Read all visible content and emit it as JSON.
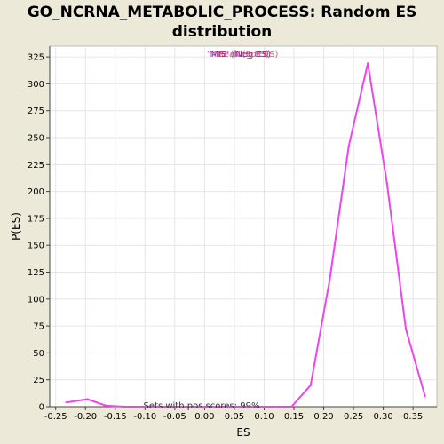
{
  "title_line1": "GO_NCRNA_METABOLIC_PROCESS: Random ES",
  "title_line2": "distribution",
  "legend": {
    "label_a": "'MIS' (Neg ES)",
    "label_a_color": "#b0007a",
    "label_b": "'Real' (Pos ES)",
    "label_b_color": "#e0405a",
    "label_c": "'MIS' (Neg ES)",
    "label_c_color": "#7a3ab0"
  },
  "annotation": "Sets with pos scores: 99%",
  "colors": {
    "line": "#ee44ee",
    "background": "#ece9d8",
    "plot_bg": "#ffffff",
    "grid": "#e6e6e6"
  },
  "chart_data": {
    "type": "line",
    "title": "GO_NCRNA_METABOLIC_PROCESS: Random ES distribution",
    "xlabel": "ES",
    "ylabel": "P(ES)",
    "xlim": [
      -0.26,
      0.39
    ],
    "ylim": [
      0,
      335
    ],
    "grid": true,
    "xticks": [
      -0.25,
      -0.2,
      -0.15,
      -0.1,
      -0.05,
      0.0,
      0.05,
      0.1,
      0.15,
      0.2,
      0.25,
      0.3,
      0.35
    ],
    "xtick_labels": [
      "-0.25",
      "-0.20",
      "-0.15",
      "-0.10",
      "-0.05",
      "0.00",
      "0.05",
      "0.10",
      "0.15",
      "0.20",
      "0.25",
      "0.30",
      "0.35"
    ],
    "yticks": [
      0,
      25,
      50,
      75,
      100,
      125,
      150,
      175,
      200,
      225,
      250,
      275,
      300,
      325
    ],
    "ytick_labels": [
      "0",
      "25",
      "50",
      "75",
      "100",
      "125",
      "150",
      "175",
      "200",
      "225",
      "250",
      "275",
      "300",
      "325"
    ],
    "series": [
      {
        "x": [
          -0.232,
          -0.197,
          -0.166,
          -0.135,
          -0.104,
          -0.072,
          -0.041,
          -0.01,
          0.021,
          0.052,
          0.083,
          0.114,
          0.146,
          0.178,
          0.21,
          0.242,
          0.274,
          0.306,
          0.338,
          0.37
        ],
        "y": [
          4,
          7,
          1,
          0,
          0,
          0,
          0,
          0,
          0,
          0,
          0,
          0,
          0,
          20,
          118,
          242,
          319,
          208,
          72,
          10
        ]
      }
    ]
  }
}
